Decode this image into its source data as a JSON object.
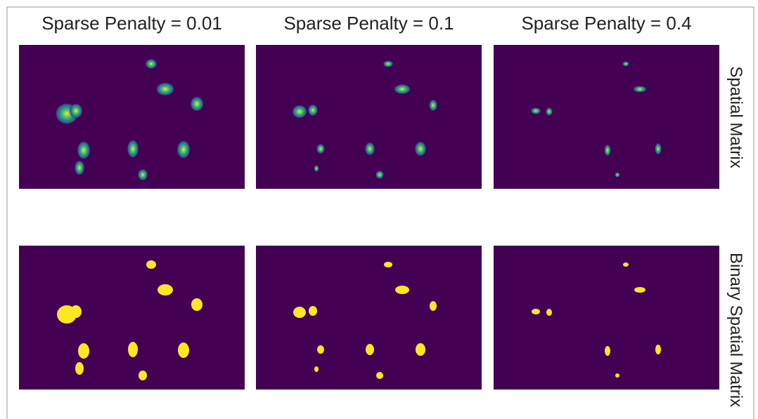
{
  "columns": [
    "Sparse Penalty = 0.01",
    "Sparse Penalty = 0.1",
    "Sparse Penalty = 0.4"
  ],
  "rows": [
    "Spatial Matrix",
    "Binary Spatial Matrix"
  ]
}
